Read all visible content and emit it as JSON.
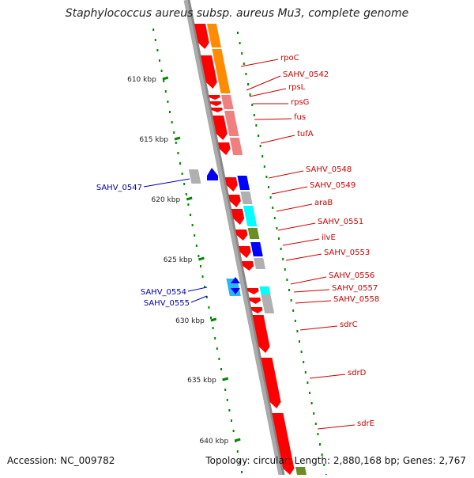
{
  "title": "Staphylococcus aureus subsp. aureus Mu3, complete genome",
  "footer": {
    "accession": "Accession: NC_009782",
    "meta": "Topology: circular; Length: 2,880,168 bp; Genes: 2,767"
  },
  "scale": {
    "ticks": [
      "610 kbp",
      "615 kbp",
      "620 kbp",
      "625 kbp",
      "630 kbp",
      "635 kbp",
      "640 kbp"
    ]
  },
  "colors": {
    "label_right": "#cc0000",
    "label_left": "#0000aa",
    "red": "#ff0000",
    "orange": "#ff8c00",
    "pink": "#f08080",
    "blue": "#0000ff",
    "cyan": "#00ffff",
    "grey": "#b0b0b0",
    "olive": "#6b8e23",
    "tick": "#008800",
    "backbone": "#888888"
  },
  "genes_right": [
    {
      "label": "rpoC"
    },
    {
      "label": "SAHV_0542"
    },
    {
      "label": "rpsL"
    },
    {
      "label": "rpsG"
    },
    {
      "label": "fus"
    },
    {
      "label": "tufA"
    },
    {
      "label": "SAHV_0548"
    },
    {
      "label": "SAHV_0549"
    },
    {
      "label": "araB"
    },
    {
      "label": "SAHV_0551"
    },
    {
      "label": "ilvE"
    },
    {
      "label": "SAHV_0553"
    },
    {
      "label": "SAHV_0556"
    },
    {
      "label": "SAHV_0557"
    },
    {
      "label": "SAHV_0558"
    },
    {
      "label": "sdrC"
    },
    {
      "label": "sdrD"
    },
    {
      "label": "sdrE"
    }
  ],
  "genes_left": [
    {
      "label": "SAHV_0547"
    },
    {
      "label": "SAHV_0554"
    },
    {
      "label": "SAHV_0555"
    }
  ]
}
